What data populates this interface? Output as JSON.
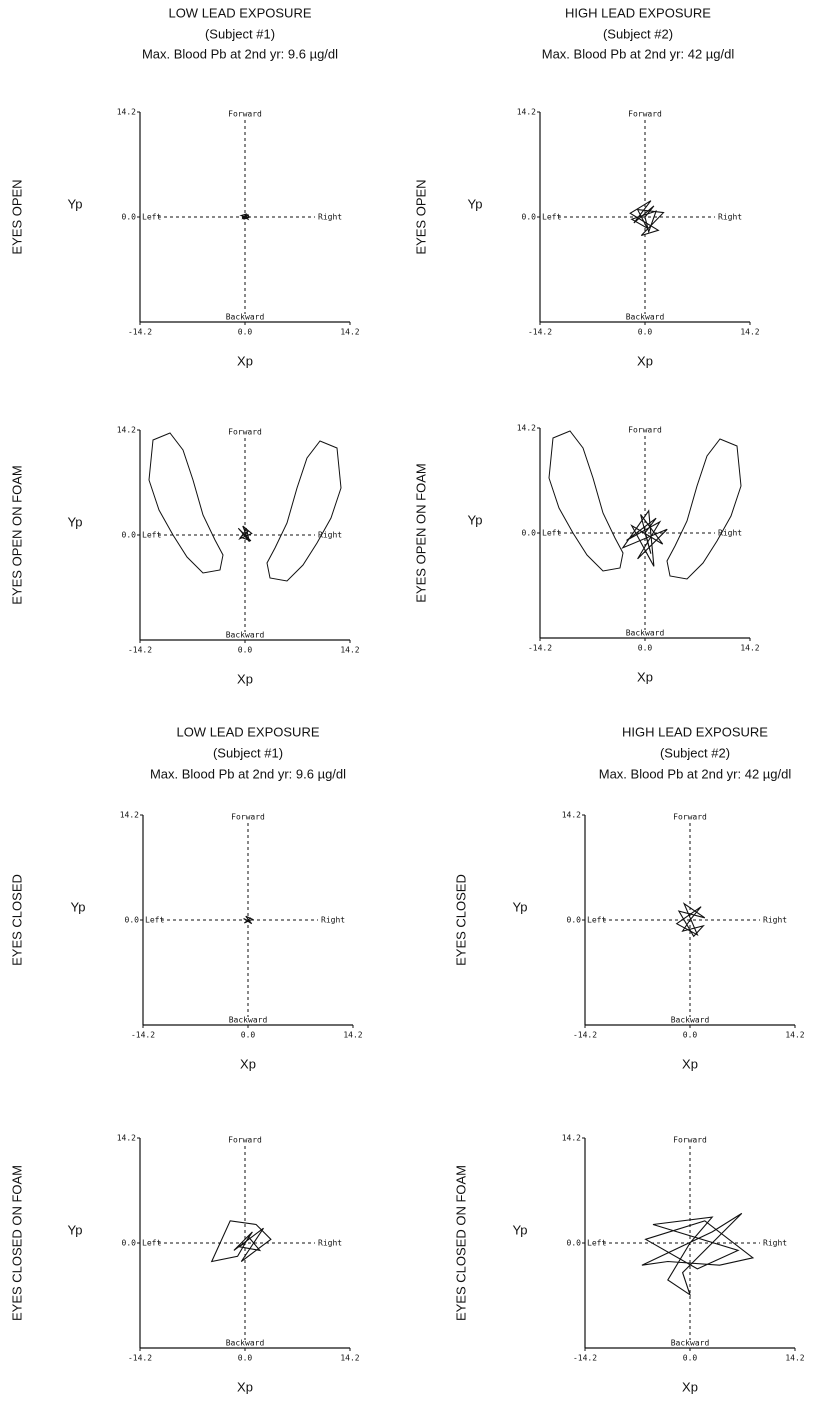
{
  "headers": [
    {
      "title": "LOW LEAD EXPOSURE",
      "subject": "(Subject #1)",
      "blood": "Max. Blood Pb at 2nd yr: 9.6 µg/dl"
    },
    {
      "title": "HIGH LEAD EXPOSURE",
      "subject": "(Subject #2)",
      "blood": "Max. Blood Pb at 2nd yr: 42 µg/dl"
    },
    {
      "title": "LOW LEAD EXPOSURE",
      "subject": "(Subject #1)",
      "blood": "Max. Blood Pb at 2nd yr: 9.6 µg/dl"
    },
    {
      "title": "HIGH LEAD EXPOSURE",
      "subject": "(Subject #2)",
      "blood": "Max. Blood Pb at 2nd yr: 42 µg/dl"
    }
  ],
  "chart_data": [
    {
      "type": "line",
      "row_label": "EYES OPEN",
      "xlabel": "Xp",
      "ylabel": "Yp",
      "directions": {
        "forward": "Forward",
        "backward": "Backward",
        "left": "Left",
        "right": "Right"
      },
      "xlim": [
        -14.2,
        14.2
      ],
      "ylim": [
        -14.2,
        14.2
      ],
      "xticks": [
        -14.2,
        {
          "value": 0,
          "label": "0.0"
        },
        14.2
      ],
      "yticks": [
        {
          "value": 0,
          "label": "0.0"
        },
        14.2
      ],
      "footprints": false,
      "series": [
        {
          "color": "#111",
          "x": [
            0,
            0.3,
            -0.4,
            0.5,
            -0.2,
            0.4,
            -0.5,
            0.2,
            0.6,
            -0.3,
            0.1,
            0.4,
            -0.4,
            0
          ],
          "y": [
            0,
            0.2,
            -0.1,
            0.3,
            -0.3,
            -0.1,
            0.2,
            0.4,
            0,
            -0.2,
            0.3,
            -0.3,
            0.1,
            0
          ]
        }
      ]
    },
    {
      "type": "line",
      "row_label": "EYES OPEN",
      "xlabel": "Xp",
      "ylabel": "Yp",
      "directions": {
        "forward": "Forward",
        "backward": "Backward",
        "left": "Left",
        "right": "Right"
      },
      "xlim": [
        -14.2,
        14.2
      ],
      "ylim": [
        -14.2,
        14.2
      ],
      "xticks": [
        -14.2,
        {
          "value": 0,
          "label": "0.0"
        },
        14.2
      ],
      "yticks": [
        {
          "value": 0,
          "label": "0.0"
        },
        14.2
      ],
      "footprints": false,
      "series": [
        {
          "color": "#111",
          "x": [
            0,
            1.2,
            -1.5,
            0.8,
            -2,
            1.8,
            -0.5,
            2.5,
            -1,
            0.3,
            -1.8,
            1.5,
            0.5,
            0
          ],
          "y": [
            0,
            1.5,
            -0.8,
            2.2,
            0.5,
            -1.8,
            -2.5,
            0.6,
            1,
            -1.5,
            -0.3,
            0.8,
            -2,
            0
          ]
        }
      ]
    },
    {
      "type": "line",
      "row_label": "EYES OPEN ON FOAM",
      "xlabel": "Xp",
      "ylabel": "Yp",
      "directions": {
        "forward": "Forward",
        "backward": "Backward",
        "left": "Left",
        "right": "Right"
      },
      "xlim": [
        -14.2,
        14.2
      ],
      "ylim": [
        -14.2,
        14.2
      ],
      "xticks": [
        -14.2,
        {
          "value": 0,
          "label": "0.0"
        },
        14.2
      ],
      "yticks": [
        {
          "value": 0,
          "label": "0.0"
        },
        14.2
      ],
      "footprints": true,
      "series": [
        {
          "color": "#111",
          "x": [
            0,
            0.5,
            -0.6,
            0.8,
            -0.9,
            0.4,
            -0.3,
            0.9,
            -0.7,
            0.2,
            0.6,
            -0.4,
            0
          ],
          "y": [
            0,
            0.6,
            -0.3,
            -0.8,
            0.9,
            -0.6,
            1.2,
            0.2,
            -0.5,
            0.8,
            -0.9,
            0.3,
            0
          ]
        }
      ]
    },
    {
      "type": "line",
      "row_label": "EYES OPEN ON FOAM",
      "xlabel": "Xp",
      "ylabel": "Yp",
      "directions": {
        "forward": "Forward",
        "backward": "Backward",
        "left": "Left",
        "right": "Right"
      },
      "xlim": [
        -14.2,
        14.2
      ],
      "ylim": [
        -14.2,
        14.2
      ],
      "xticks": [
        -14.2,
        {
          "value": 0,
          "label": "0.0"
        },
        14.2
      ],
      "yticks": [
        {
          "value": 0,
          "label": "0.0"
        },
        14.2
      ],
      "footprints": true,
      "series": [
        {
          "color": "#111",
          "x": [
            0,
            1.5,
            -2.5,
            2,
            -1,
            3,
            -3,
            0.5,
            1.2,
            -1.8,
            2.4,
            -0.6,
            0.8,
            0
          ],
          "y": [
            0,
            2,
            -1,
            1.5,
            -3.5,
            0.5,
            -2,
            3,
            -4.5,
            1,
            -1.5,
            2.5,
            -2.8,
            0
          ]
        }
      ]
    },
    {
      "type": "line",
      "row_label": "EYES CLOSED",
      "xlabel": "Xp",
      "ylabel": "Yp",
      "directions": {
        "forward": "Forward",
        "backward": "Backward",
        "left": "Left",
        "right": "Right"
      },
      "xlim": [
        -14.2,
        14.2
      ],
      "ylim": [
        -14.2,
        14.2
      ],
      "xticks": [
        -14.2,
        {
          "value": 0,
          "label": "0.0"
        },
        14.2
      ],
      "yticks": [
        {
          "value": 0,
          "label": "0.0"
        },
        14.2
      ],
      "footprints": false,
      "series": [
        {
          "color": "#111",
          "x": [
            0,
            0.4,
            -0.5,
            0.6,
            -0.3,
            0.5,
            -0.6,
            0.2,
            0
          ],
          "y": [
            0,
            0.3,
            -0.4,
            0.1,
            0.5,
            -0.5,
            0.2,
            -0.2,
            0
          ]
        }
      ]
    },
    {
      "type": "line",
      "row_label": "EYES CLOSED",
      "xlabel": "Xp",
      "ylabel": "Yp",
      "directions": {
        "forward": "Forward",
        "backward": "Backward",
        "left": "Left",
        "right": "Right"
      },
      "xlim": [
        -14.2,
        14.2
      ],
      "ylim": [
        -14.2,
        14.2
      ],
      "xticks": [
        -14.2,
        {
          "value": 0,
          "label": "0.0"
        },
        14.2
      ],
      "yticks": [
        {
          "value": 0,
          "label": "0.0"
        },
        14.2
      ],
      "footprints": false,
      "series": [
        {
          "color": "#111",
          "x": [
            0,
            1.5,
            -1.8,
            1,
            -0.8,
            2,
            -1.5,
            0.5,
            1.8,
            -1,
            0
          ],
          "y": [
            0,
            1.8,
            -0.5,
            -2,
            2.2,
            0.3,
            1.2,
            -2.2,
            -0.8,
            -1.5,
            0
          ]
        }
      ]
    },
    {
      "type": "line",
      "row_label": "EYES CLOSED ON FOAM",
      "xlabel": "Xp",
      "ylabel": "Yp",
      "directions": {
        "forward": "Forward",
        "backward": "Backward",
        "left": "Left",
        "right": "Right"
      },
      "xlim": [
        -14.2,
        14.2
      ],
      "ylim": [
        -14.2,
        14.2
      ],
      "xticks": [
        -14.2,
        {
          "value": 0,
          "label": "0.0"
        },
        14.2
      ],
      "yticks": [
        {
          "value": 0,
          "label": "0.0"
        },
        14.2
      ],
      "footprints": false,
      "series": [
        {
          "color": "#111",
          "x": [
            0,
            1,
            -1.5,
            2.5,
            -0.5,
            3.5,
            1.5,
            -2,
            -4.5,
            -1,
            0.5,
            2,
            -0.8,
            0
          ],
          "y": [
            0,
            1.5,
            -1,
            2,
            -2.5,
            0.5,
            2.5,
            3,
            -2.5,
            -1.8,
            0.8,
            -1,
            -0.5,
            0
          ]
        }
      ]
    },
    {
      "type": "line",
      "row_label": "EYES CLOSED ON FOAM",
      "xlabel": "Xp",
      "ylabel": "Yp",
      "directions": {
        "forward": "Forward",
        "backward": "Backward",
        "left": "Left",
        "right": "Right"
      },
      "xlim": [
        -14.2,
        14.2
      ],
      "ylim": [
        -14.2,
        14.2
      ],
      "xticks": [
        -14.2,
        {
          "value": 0,
          "label": "0.0"
        },
        14.2
      ],
      "yticks": [
        {
          "value": 0,
          "label": "0.0"
        },
        14.2
      ],
      "footprints": false,
      "series": [
        {
          "color": "#111",
          "x": [
            0,
            3,
            -5,
            6.5,
            1,
            -6,
            2,
            8.5,
            4,
            -3,
            -6.5,
            3,
            7,
            -1,
            0,
            -3,
            0
          ],
          "y": [
            0,
            3.5,
            2.5,
            -1,
            -3.5,
            0.5,
            3,
            -2,
            -3,
            -2.5,
            -3,
            1.5,
            4,
            -4,
            -7,
            -5,
            0
          ]
        }
      ]
    }
  ]
}
